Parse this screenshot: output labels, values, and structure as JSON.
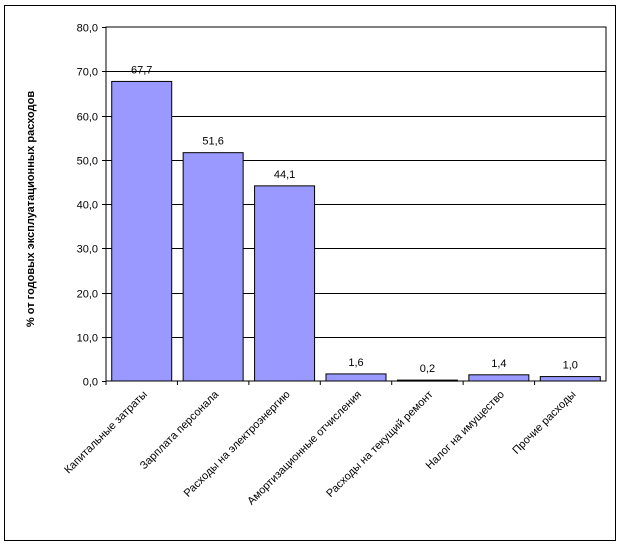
{
  "chart_data": {
    "type": "bar",
    "title": "",
    "xlabel": "",
    "ylabel": "% от годовых эксплуатационных расходов",
    "ylim": [
      0,
      80
    ],
    "yticks": [
      "0,0",
      "10,0",
      "20,0",
      "30,0",
      "40,0",
      "50,0",
      "60,0",
      "70,0",
      "80,0"
    ],
    "grid": true,
    "categories": [
      "Капитальные затраты",
      "Зарплата персонала",
      "Расходы на электроэнергию",
      "Амортизационные отчисления",
      "Расходы на текущий ремонт",
      "Налог на имущество",
      "Прочие расходы"
    ],
    "values": [
      67.7,
      51.6,
      44.1,
      1.6,
      0.2,
      1.4,
      1.0
    ],
    "data_labels": [
      "67,7",
      "51,6",
      "44,1",
      "1,6",
      "0,2",
      "1,4",
      "1,0"
    ],
    "bar_color": "#9999ff"
  }
}
